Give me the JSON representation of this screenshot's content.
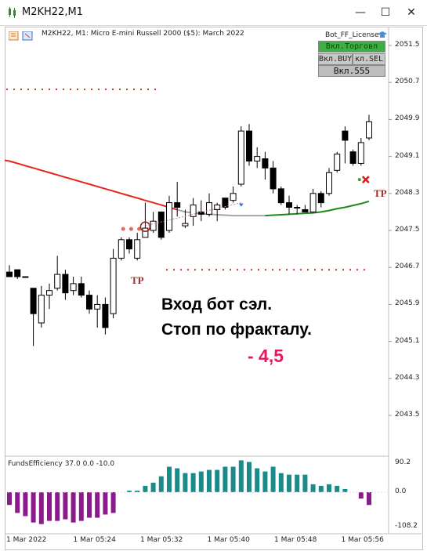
{
  "window": {
    "title": "M2KH22,M1",
    "buttons": {
      "minimize": "—",
      "maximize": "☐",
      "close": "✕"
    }
  },
  "chart": {
    "header": "M2KH22, M1:  Micro E-mini Russell 2000 ($5): March 2022",
    "bot_label": "Bot_FF_License",
    "panel_buttons": {
      "trade": "Вкл.Торговл",
      "buy": "Вкл.BUY",
      "sell": "кл.SEL",
      "counter": "Вкл.555"
    },
    "price_labels": [
      "2051.5",
      "2050.7",
      "2049.9",
      "2049.1",
      "2048.3",
      "2047.5",
      "2046.7",
      "2045.9",
      "2045.1",
      "2044.3",
      "2043.5"
    ],
    "time_labels": [
      "1 Mar 2022",
      "1 Mar 05:24",
      "1 Mar 05:32",
      "1 Mar 05:40",
      "1 Mar 05:48",
      "1 Mar 05:56"
    ],
    "tp_labels": [
      "TP",
      "TP"
    ],
    "indicator": {
      "label": "FundsEfficiency 37.0 0.0 -10.0",
      "levels": [
        "90.2",
        "0.0",
        "-108.2"
      ]
    }
  },
  "annotation": {
    "line1": "Вход бот сэл.",
    "line2": "Стоп по фракталу.",
    "result": "- 4,5"
  },
  "colors": {
    "ma_red": "#e8231a",
    "ma_gray": "#a6a6a6",
    "ma_green": "#1e8a1e",
    "fractal_dots": "#c0392b",
    "tp_text": "#a52a2a",
    "bar_positive": "#1a8a8a",
    "bar_negative": "#8b1a8b",
    "loss_text": "#e8195a"
  },
  "chart_data": {
    "type": "candlestick",
    "symbol": "M2KH22",
    "timeframe": "M1",
    "candles": [
      {
        "o": 2046.6,
        "h": 2046.75,
        "l": 2046.5,
        "c": 2046.5
      },
      {
        "o": 2046.65,
        "h": 2046.65,
        "l": 2046.45,
        "c": 2046.5
      },
      {
        "o": 2046.5,
        "h": 2046.5,
        "l": 2046.5,
        "c": 2046.5
      },
      {
        "o": 2046.25,
        "h": 2046.25,
        "l": 2045.0,
        "c": 2045.7
      },
      {
        "o": 2045.5,
        "h": 2046.3,
        "l": 2045.4,
        "c": 2046.1
      },
      {
        "o": 2046.1,
        "h": 2046.35,
        "l": 2045.8,
        "c": 2046.2
      },
      {
        "o": 2046.25,
        "h": 2046.95,
        "l": 2046.2,
        "c": 2046.55
      },
      {
        "o": 2046.55,
        "h": 2046.65,
        "l": 2046.0,
        "c": 2046.15
      },
      {
        "o": 2046.2,
        "h": 2046.5,
        "l": 2046.1,
        "c": 2046.35
      },
      {
        "o": 2046.35,
        "h": 2046.5,
        "l": 2046.05,
        "c": 2046.1
      },
      {
        "o": 2046.1,
        "h": 2046.2,
        "l": 2045.7,
        "c": 2045.8
      },
      {
        "o": 2045.8,
        "h": 2046.1,
        "l": 2045.4,
        "c": 2045.9
      },
      {
        "o": 2045.9,
        "h": 2046.05,
        "l": 2045.25,
        "c": 2045.4
      },
      {
        "o": 2045.7,
        "h": 2047.1,
        "l": 2045.6,
        "c": 2046.9
      },
      {
        "o": 2046.9,
        "h": 2047.35,
        "l": 2046.85,
        "c": 2047.3
      },
      {
        "o": 2047.3,
        "h": 2047.35,
        "l": 2047.0,
        "c": 2047.1
      },
      {
        "o": 2046.9,
        "h": 2047.45,
        "l": 2046.85,
        "c": 2047.3
      },
      {
        "o": 2047.35,
        "h": 2048.1,
        "l": 2047.35,
        "c": 2047.55
      },
      {
        "o": 2047.5,
        "h": 2047.9,
        "l": 2047.45,
        "c": 2047.7
      },
      {
        "o": 2047.9,
        "h": 2047.9,
        "l": 2047.3,
        "c": 2047.35
      },
      {
        "o": 2047.5,
        "h": 2048.25,
        "l": 2047.45,
        "c": 2048.1
      },
      {
        "o": 2048.1,
        "h": 2048.55,
        "l": 2047.8,
        "c": 2048.0
      },
      {
        "o": 2047.6,
        "h": 2047.95,
        "l": 2047.55,
        "c": 2047.65
      },
      {
        "o": 2047.8,
        "h": 2048.2,
        "l": 2047.6,
        "c": 2048.05
      },
      {
        "o": 2047.9,
        "h": 2048.15,
        "l": 2047.7,
        "c": 2047.85
      },
      {
        "o": 2047.85,
        "h": 2048.3,
        "l": 2047.8,
        "c": 2048.1
      },
      {
        "o": 2047.95,
        "h": 2048.1,
        "l": 2047.7,
        "c": 2048.05
      },
      {
        "o": 2048.2,
        "h": 2048.2,
        "l": 2047.95,
        "c": 2048.0
      },
      {
        "o": 2048.15,
        "h": 2048.45,
        "l": 2048.1,
        "c": 2048.3
      },
      {
        "o": 2048.5,
        "h": 2049.75,
        "l": 2048.45,
        "c": 2049.65
      },
      {
        "o": 2049.65,
        "h": 2049.8,
        "l": 2048.9,
        "c": 2049.0
      },
      {
        "o": 2049.0,
        "h": 2049.3,
        "l": 2048.85,
        "c": 2049.1
      },
      {
        "o": 2049.05,
        "h": 2049.2,
        "l": 2048.6,
        "c": 2048.85
      },
      {
        "o": 2048.85,
        "h": 2049.0,
        "l": 2048.3,
        "c": 2048.4
      },
      {
        "o": 2048.4,
        "h": 2048.45,
        "l": 2048.05,
        "c": 2048.1
      },
      {
        "o": 2048.1,
        "h": 2048.25,
        "l": 2047.85,
        "c": 2048.0
      },
      {
        "o": 2048.0,
        "h": 2048.05,
        "l": 2047.85,
        "c": 2048.0
      },
      {
        "o": 2047.95,
        "h": 2048.05,
        "l": 2047.9,
        "c": 2047.9
      },
      {
        "o": 2047.9,
        "h": 2048.4,
        "l": 2047.9,
        "c": 2048.3
      },
      {
        "o": 2048.3,
        "h": 2048.35,
        "l": 2048.0,
        "c": 2048.1
      },
      {
        "o": 2048.3,
        "h": 2048.85,
        "l": 2048.25,
        "c": 2048.75
      },
      {
        "o": 2048.8,
        "h": 2049.2,
        "l": 2048.75,
        "c": 2049.15
      },
      {
        "o": 2049.65,
        "h": 2049.75,
        "l": 2048.95,
        "c": 2049.45
      },
      {
        "o": 2049.2,
        "h": 2049.25,
        "l": 2048.9,
        "c": 2048.95
      },
      {
        "o": 2048.95,
        "h": 2049.5,
        "l": 2048.9,
        "c": 2049.4
      },
      {
        "o": 2049.5,
        "h": 2050.0,
        "l": 2049.45,
        "c": 2049.85
      }
    ],
    "moving_average": {
      "values": [
        2049.0,
        2048.95,
        2048.9,
        2048.85,
        2048.8,
        2048.75,
        2048.7,
        2048.65,
        2048.6,
        2048.55,
        2048.5,
        2048.45,
        2048.4,
        2048.35,
        2048.3,
        2048.25,
        2048.2,
        2048.15,
        2048.1,
        2048.05,
        2048.0,
        2047.95,
        2047.9,
        2047.88,
        2047.86,
        2047.85,
        2047.84,
        2047.83,
        2047.82,
        2047.82,
        2047.82,
        2047.82,
        2047.82,
        2047.83,
        2047.84,
        2047.85,
        2047.86,
        2047.87,
        2047.88,
        2047.9,
        2047.93,
        2047.97,
        2048.0,
        2048.04,
        2048.08,
        2048.13
      ],
      "color_segments": [
        {
          "from": 0,
          "to": 21,
          "color": "red"
        },
        {
          "from": 21,
          "to": 32,
          "color": "gray"
        },
        {
          "from": 32,
          "to": 45,
          "color": "green"
        }
      ]
    },
    "fractal_levels": [
      {
        "price": 2050.55,
        "from": 0,
        "to": 19
      },
      {
        "price": 2046.65,
        "from": 20,
        "to": 45
      }
    ],
    "fractal_markers": [
      {
        "index": 16,
        "price": 2047.6
      },
      {
        "index": 17,
        "price": 2047.6
      },
      {
        "index": 18,
        "price": 2047.6
      }
    ],
    "indicator_bars": [
      -40,
      -65,
      -75,
      -95,
      -100,
      -90,
      -90,
      -85,
      -95,
      -90,
      -80,
      -80,
      -70,
      -65,
      0,
      5,
      5,
      20,
      30,
      50,
      80,
      75,
      60,
      60,
      65,
      70,
      70,
      80,
      80,
      100,
      95,
      75,
      65,
      80,
      60,
      55,
      55,
      55,
      25,
      20,
      25,
      20,
      10,
      0,
      -20,
      -40
    ],
    "ylim": [
      2043.0,
      2051.8
    ],
    "indicator_ylim": [
      -108.2,
      90.2
    ]
  }
}
